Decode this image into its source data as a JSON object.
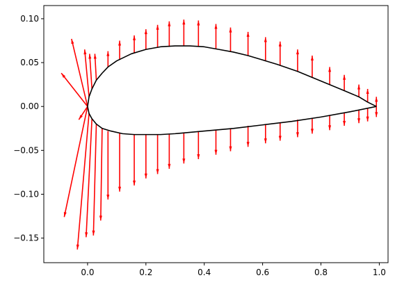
{
  "chart_data": {
    "type": "line",
    "xlim": [
      -0.15,
      1.03
    ],
    "ylim": [
      -0.178,
      0.115
    ],
    "grid": false,
    "legend": "none",
    "x_ticks": [
      0.0,
      0.2,
      0.4,
      0.6,
      0.8,
      1.0
    ],
    "x_tick_labels": [
      "0.0",
      "0.2",
      "0.4",
      "0.6",
      "0.8",
      "1.0"
    ],
    "y_ticks": [
      -0.15,
      -0.1,
      -0.05,
      0.0,
      0.05,
      0.1
    ],
    "y_tick_labels": [
      "−0.15",
      "−0.10",
      "−0.05",
      "0.00",
      "0.05",
      "0.10"
    ],
    "series": [
      {
        "kind": "airfoil-outline",
        "color": "#000000",
        "upper": [
          [
            0.99,
            0.0
          ],
          [
            0.96,
            0.005
          ],
          [
            0.93,
            0.011
          ],
          [
            0.88,
            0.018
          ],
          [
            0.8,
            0.029
          ],
          [
            0.72,
            0.04
          ],
          [
            0.65,
            0.048
          ],
          [
            0.6,
            0.053
          ],
          [
            0.55,
            0.058
          ],
          [
            0.5,
            0.062
          ],
          [
            0.45,
            0.065
          ],
          [
            0.4,
            0.068
          ],
          [
            0.35,
            0.069
          ],
          [
            0.3,
            0.069
          ],
          [
            0.25,
            0.068
          ],
          [
            0.2,
            0.065
          ],
          [
            0.15,
            0.06
          ],
          [
            0.1,
            0.052
          ],
          [
            0.07,
            0.045
          ],
          [
            0.05,
            0.038
          ],
          [
            0.03,
            0.03
          ],
          [
            0.015,
            0.02
          ],
          [
            0.005,
            0.011
          ],
          [
            0.0,
            0.0
          ]
        ],
        "lower": [
          [
            0.0,
            0.0
          ],
          [
            0.005,
            -0.008
          ],
          [
            0.015,
            -0.014
          ],
          [
            0.03,
            -0.02
          ],
          [
            0.05,
            -0.025
          ],
          [
            0.08,
            -0.028
          ],
          [
            0.12,
            -0.031
          ],
          [
            0.16,
            -0.032
          ],
          [
            0.2,
            -0.032
          ],
          [
            0.25,
            -0.032
          ],
          [
            0.3,
            -0.031
          ],
          [
            0.4,
            -0.028
          ],
          [
            0.5,
            -0.025
          ],
          [
            0.6,
            -0.021
          ],
          [
            0.7,
            -0.017
          ],
          [
            0.8,
            -0.012
          ],
          [
            0.9,
            -0.006
          ],
          [
            0.99,
            0.0
          ]
        ]
      },
      {
        "kind": "normal-vectors",
        "color": "#ff0000",
        "arrows": [
          {
            "x": 0.0,
            "y": 0.0,
            "dx": -0.09,
            "dy": 0.038
          },
          {
            "x": 0.0,
            "y": 0.0,
            "dx": -0.055,
            "dy": 0.077
          },
          {
            "x": 0.0,
            "y": 0.0,
            "dx": -0.03,
            "dy": -0.015
          },
          {
            "x": 0.005,
            "y": 0.011,
            "dx": -0.015,
            "dy": 0.054
          },
          {
            "x": 0.015,
            "y": 0.02,
            "dx": -0.008,
            "dy": 0.04
          },
          {
            "x": 0.03,
            "y": 0.03,
            "dx": -0.005,
            "dy": 0.03
          },
          {
            "x": 0.07,
            "y": 0.045,
            "dx": 0.0,
            "dy": 0.018
          },
          {
            "x": 0.11,
            "y": 0.054,
            "dx": 0.0,
            "dy": 0.021
          },
          {
            "x": 0.16,
            "y": 0.061,
            "dx": 0.0,
            "dy": 0.02
          },
          {
            "x": 0.2,
            "y": 0.065,
            "dx": 0.0,
            "dy": 0.023
          },
          {
            "x": 0.24,
            "y": 0.067,
            "dx": 0.0,
            "dy": 0.026
          },
          {
            "x": 0.28,
            "y": 0.068,
            "dx": 0.0,
            "dy": 0.029
          },
          {
            "x": 0.33,
            "y": 0.069,
            "dx": 0.0,
            "dy": 0.03
          },
          {
            "x": 0.38,
            "y": 0.068,
            "dx": 0.0,
            "dy": 0.03
          },
          {
            "x": 0.44,
            "y": 0.066,
            "dx": 0.0,
            "dy": 0.028
          },
          {
            "x": 0.49,
            "y": 0.062,
            "dx": 0.0,
            "dy": 0.028
          },
          {
            "x": 0.55,
            "y": 0.058,
            "dx": 0.0,
            "dy": 0.027
          },
          {
            "x": 0.61,
            "y": 0.052,
            "dx": 0.0,
            "dy": 0.027
          },
          {
            "x": 0.66,
            "y": 0.047,
            "dx": 0.0,
            "dy": 0.027
          },
          {
            "x": 0.72,
            "y": 0.04,
            "dx": 0.0,
            "dy": 0.025
          },
          {
            "x": 0.77,
            "y": 0.033,
            "dx": 0.0,
            "dy": 0.025
          },
          {
            "x": 0.83,
            "y": 0.025,
            "dx": 0.0,
            "dy": 0.02
          },
          {
            "x": 0.88,
            "y": 0.018,
            "dx": 0.0,
            "dy": 0.018
          },
          {
            "x": 0.93,
            "y": 0.011,
            "dx": 0.0,
            "dy": 0.014
          },
          {
            "x": 0.96,
            "y": 0.005,
            "dx": 0.0,
            "dy": 0.015
          },
          {
            "x": 0.99,
            "y": 0.0,
            "dx": 0.0,
            "dy": 0.011
          },
          {
            "x": 0.99,
            "y": 0.0,
            "dx": 0.0,
            "dy": -0.012
          },
          {
            "x": 0.96,
            "y": -0.002,
            "dx": 0.0,
            "dy": -0.015
          },
          {
            "x": 0.93,
            "y": -0.004,
            "dx": 0.0,
            "dy": -0.015
          },
          {
            "x": 0.88,
            "y": -0.007,
            "dx": 0.0,
            "dy": -0.015
          },
          {
            "x": 0.83,
            "y": -0.01,
            "dx": 0.0,
            "dy": -0.017
          },
          {
            "x": 0.77,
            "y": -0.013,
            "dx": 0.0,
            "dy": -0.018
          },
          {
            "x": 0.72,
            "y": -0.015,
            "dx": 0.0,
            "dy": -0.02
          },
          {
            "x": 0.66,
            "y": -0.018,
            "dx": 0.0,
            "dy": -0.021
          },
          {
            "x": 0.61,
            "y": -0.02,
            "dx": 0.0,
            "dy": -0.022
          },
          {
            "x": 0.55,
            "y": -0.022,
            "dx": 0.0,
            "dy": -0.024
          },
          {
            "x": 0.49,
            "y": -0.025,
            "dx": 0.0,
            "dy": -0.026
          },
          {
            "x": 0.44,
            "y": -0.027,
            "dx": 0.0,
            "dy": -0.028
          },
          {
            "x": 0.38,
            "y": -0.028,
            "dx": 0.0,
            "dy": -0.032
          },
          {
            "x": 0.33,
            "y": -0.03,
            "dx": 0.0,
            "dy": -0.035
          },
          {
            "x": 0.28,
            "y": -0.031,
            "dx": 0.0,
            "dy": -0.04
          },
          {
            "x": 0.24,
            "y": -0.032,
            "dx": 0.0,
            "dy": -0.045
          },
          {
            "x": 0.2,
            "y": -0.032,
            "dx": 0.0,
            "dy": -0.05
          },
          {
            "x": 0.16,
            "y": -0.032,
            "dx": 0.0,
            "dy": -0.058
          },
          {
            "x": 0.11,
            "y": -0.03,
            "dx": 0.0,
            "dy": -0.067
          },
          {
            "x": 0.07,
            "y": -0.028,
            "dx": 0.0,
            "dy": -0.078
          },
          {
            "x": 0.05,
            "y": -0.025,
            "dx": -0.005,
            "dy": -0.105
          },
          {
            "x": 0.03,
            "y": -0.02,
            "dx": -0.01,
            "dy": -0.127
          },
          {
            "x": 0.015,
            "y": -0.014,
            "dx": -0.02,
            "dy": -0.135
          },
          {
            "x": 0.005,
            "y": -0.008,
            "dx": -0.04,
            "dy": -0.155
          },
          {
            "x": 0.0,
            "y": 0.0,
            "dx": -0.08,
            "dy": -0.126
          }
        ]
      }
    ]
  }
}
